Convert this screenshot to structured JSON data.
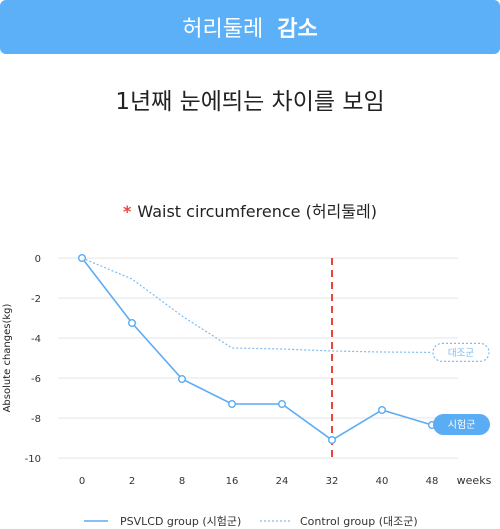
{
  "banner": {
    "text_normal": "허리둘레",
    "text_bold": "감소"
  },
  "headline": "1년째 눈에띄는 차이를 보임",
  "chart_title": {
    "marker": "*",
    "text": "Waist circumference (허리둘레)"
  },
  "colors": {
    "banner": "#5cb0f8",
    "psvlcd": "#5aacf5",
    "control": "#7bbcf2",
    "marker_line": "#e8453c",
    "grid": "#e6e6e6"
  },
  "chart_data": {
    "type": "line",
    "x": [
      "0",
      "2",
      "8",
      "16",
      "24",
      "32",
      "40",
      "48"
    ],
    "xlabel": "weeks",
    "ylabel": "Absolute changes(kg)",
    "yticks": [
      0,
      -2,
      -4,
      -6,
      -8,
      -10
    ],
    "ylim": [
      -10,
      0
    ],
    "grid": true,
    "reference_line_x": "32",
    "series": [
      {
        "name": "PSVLCD group (시험군)",
        "style": "solid",
        "values": [
          0,
          -3.25,
          -6.05,
          -7.3,
          -7.3,
          -9.1,
          -7.6,
          -8.35
        ],
        "end_label": "시험군"
      },
      {
        "name": "Control group (대조군)",
        "style": "dotted",
        "values": [
          0,
          -1.05,
          -2.9,
          -4.5,
          -4.55,
          -4.65,
          -4.7,
          -4.72
        ],
        "end_label": "대조군"
      }
    ],
    "legend_position": "bottom"
  }
}
